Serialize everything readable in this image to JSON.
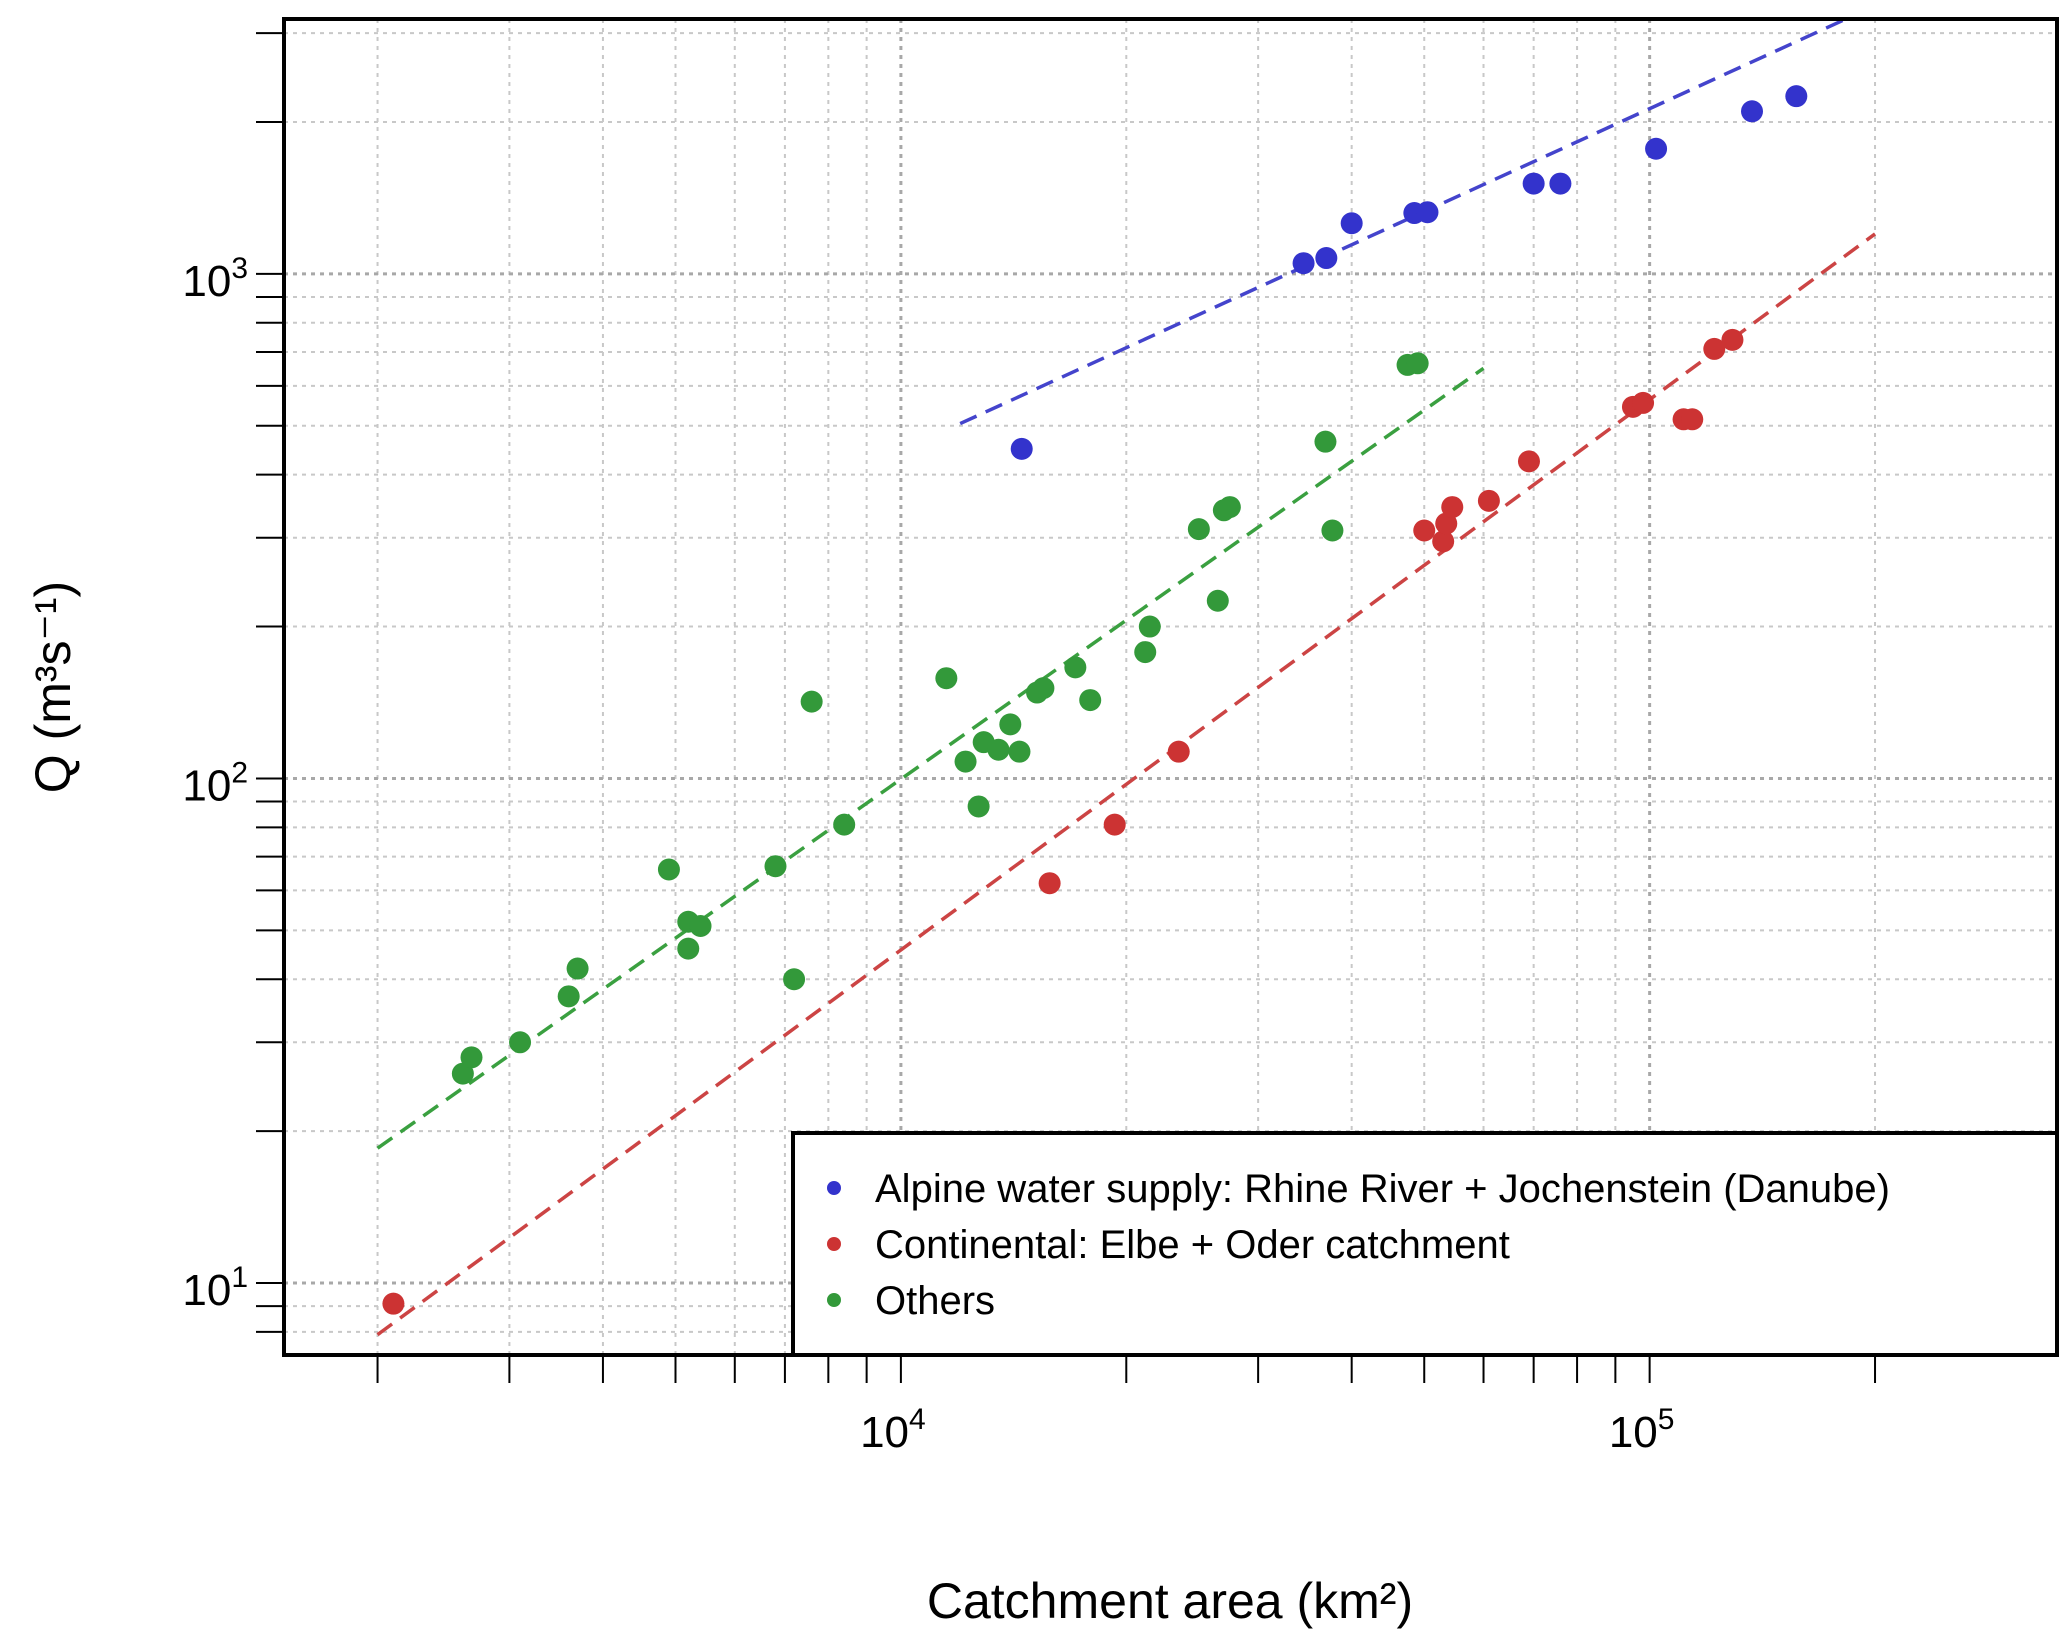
{
  "chart_data": {
    "type": "scatter",
    "xlabel": "Catchment area (km²)",
    "ylabel": "Q (m³s⁻¹)",
    "x_scale": "log",
    "y_scale": "log",
    "xlim": [
      1500,
      350000
    ],
    "ylim": [
      7.2,
      3200
    ],
    "x_ticks": [
      {
        "value": 10000,
        "base": "10",
        "exp": "4"
      },
      {
        "value": 100000,
        "base": "10",
        "exp": "5"
      }
    ],
    "y_ticks": [
      {
        "value": 10,
        "base": "10",
        "exp": "1"
      },
      {
        "value": 100,
        "base": "10",
        "exp": "2"
      },
      {
        "value": 1000,
        "base": "10",
        "exp": "3"
      }
    ],
    "grid": true,
    "legend_position": "bottom-right",
    "series": [
      {
        "name": "Alpine water supply: Rhine River + Jochenstein (Danube)",
        "color": "#3333cc",
        "line_color": "#4444cc",
        "x": [
          14500,
          34500,
          37000,
          40000,
          48500,
          50500,
          70000,
          76000,
          102000,
          137000,
          157000
        ],
        "y": [
          450,
          1050,
          1075,
          1260,
          1320,
          1325,
          1510,
          1510,
          1770,
          2100,
          2250
        ],
        "fit": {
          "x": [
            12000,
            200000
          ],
          "y": [
            505,
            3400
          ]
        }
      },
      {
        "name": "Continental: Elbe + Oder catchment",
        "color": "#cc3333",
        "line_color": "#cc4444",
        "x": [
          2100,
          15800,
          19300,
          23500,
          50000,
          53000,
          53500,
          54500,
          61000,
          69000,
          95000,
          98000,
          111000,
          114000,
          122000,
          129000
        ],
        "y": [
          9.1,
          62,
          81,
          113,
          310,
          295,
          320,
          345,
          355,
          425,
          545,
          555,
          515,
          515,
          710,
          740
        ],
        "fit": {
          "x": [
            2000,
            200000
          ],
          "y": [
            7.9,
            1200
          ]
        }
      },
      {
        "name": "Others",
        "color": "#33993a",
        "line_color": "#3aa040",
        "x": [
          2600,
          2670,
          3100,
          3600,
          3700,
          4900,
          5200,
          5200,
          5400,
          6800,
          7200,
          7600,
          8400,
          11500,
          12200,
          12700,
          12900,
          13500,
          14000,
          14400,
          15200,
          15500,
          17100,
          17900,
          21200,
          21500,
          25000,
          26500,
          27000,
          27500,
          36900,
          37700,
          47500,
          49000
        ],
        "y": [
          26,
          28,
          30,
          37,
          42,
          66,
          46,
          52,
          51,
          67,
          40,
          142,
          81,
          158,
          108,
          88,
          118,
          114,
          128,
          113,
          148,
          151,
          166,
          143,
          178,
          200,
          312,
          225,
          340,
          345,
          465,
          310,
          660,
          665
        ],
        "fit": {
          "x": [
            2000,
            60000
          ],
          "y": [
            18.5,
            650
          ]
        }
      }
    ]
  }
}
